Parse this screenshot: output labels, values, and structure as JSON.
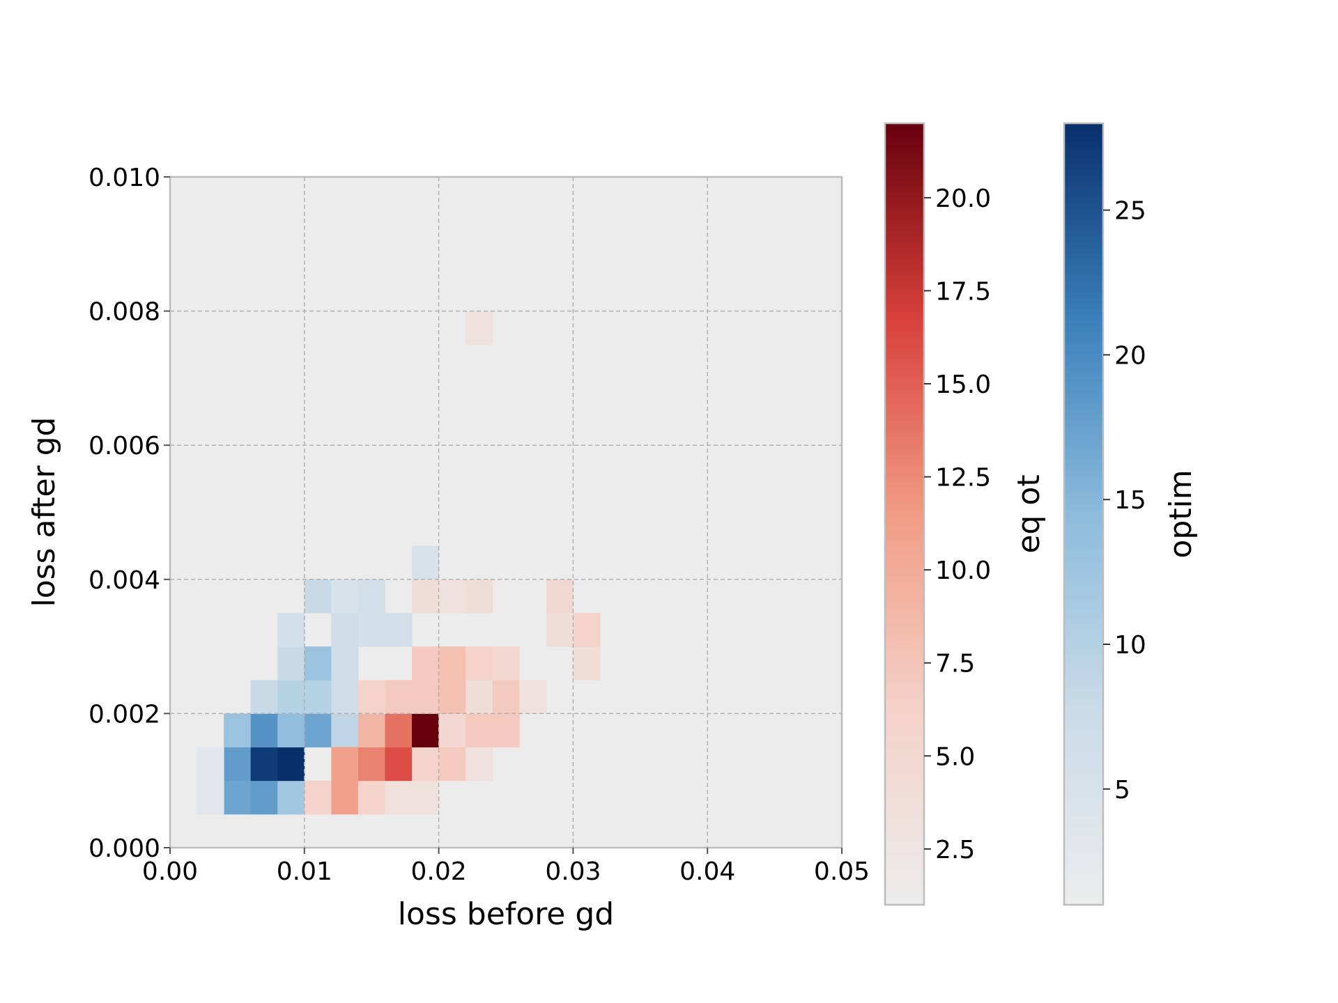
{
  "chart_data": {
    "type": "heatmap",
    "title": "",
    "xlabel": "loss before gd",
    "ylabel": "loss after gd",
    "xlim": [
      0,
      0.05
    ],
    "ylim": [
      0,
      0.01
    ],
    "xticks": [
      "0.00",
      "0.01",
      "0.02",
      "0.03",
      "0.04",
      "0.05"
    ],
    "yticks": [
      "0.000",
      "0.002",
      "0.004",
      "0.006",
      "0.008",
      "0.010"
    ],
    "grid": true,
    "bin_width_x": 0.002,
    "bin_height_y": 0.0005,
    "series": [
      {
        "name": "optim",
        "colormap": "Blues",
        "color_low": "#ececec",
        "color_high": "#08306b",
        "vmin": 1,
        "vmax": 28,
        "colorbar_label": "optim",
        "colorbar_ticks": [
          5,
          10,
          15,
          20,
          25
        ],
        "cells": [
          {
            "x": 0.004,
            "y": 0.0005,
            "count": 17
          },
          {
            "x": 0.006,
            "y": 0.0005,
            "count": 18
          },
          {
            "x": 0.008,
            "y": 0.0005,
            "count": 12
          },
          {
            "x": 0.004,
            "y": 0.001,
            "count": 18
          },
          {
            "x": 0.006,
            "y": 0.001,
            "count": 27
          },
          {
            "x": 0.008,
            "y": 0.001,
            "count": 28
          },
          {
            "x": 0.004,
            "y": 0.0015,
            "count": 13
          },
          {
            "x": 0.006,
            "y": 0.0015,
            "count": 19
          },
          {
            "x": 0.008,
            "y": 0.0015,
            "count": 14
          },
          {
            "x": 0.01,
            "y": 0.0015,
            "count": 17
          },
          {
            "x": 0.012,
            "y": 0.0015,
            "count": 9
          },
          {
            "x": 0.006,
            "y": 0.002,
            "count": 8
          },
          {
            "x": 0.008,
            "y": 0.002,
            "count": 10
          },
          {
            "x": 0.01,
            "y": 0.002,
            "count": 10
          },
          {
            "x": 0.012,
            "y": 0.002,
            "count": 7
          },
          {
            "x": 0.008,
            "y": 0.0025,
            "count": 8
          },
          {
            "x": 0.01,
            "y": 0.0025,
            "count": 13
          },
          {
            "x": 0.012,
            "y": 0.0025,
            "count": 7
          },
          {
            "x": 0.008,
            "y": 0.003,
            "count": 6
          },
          {
            "x": 0.012,
            "y": 0.003,
            "count": 7
          },
          {
            "x": 0.014,
            "y": 0.003,
            "count": 6
          },
          {
            "x": 0.016,
            "y": 0.003,
            "count": 6
          },
          {
            "x": 0.01,
            "y": 0.0035,
            "count": 8
          },
          {
            "x": 0.012,
            "y": 0.0035,
            "count": 5
          },
          {
            "x": 0.014,
            "y": 0.0035,
            "count": 6
          },
          {
            "x": 0.018,
            "y": 0.004,
            "count": 5
          },
          {
            "x": 0.002,
            "y": 0.0005,
            "count": 3
          },
          {
            "x": 0.002,
            "y": 0.001,
            "count": 3
          }
        ]
      },
      {
        "name": "eq ot",
        "colormap": "Reds",
        "color_low": "#ececec",
        "color_high": "#67000d",
        "vmin": 1,
        "vmax": 22,
        "colorbar_label": "eq ot",
        "colorbar_ticks": [
          "2.5",
          "5.0",
          "7.5",
          "10.0",
          "12.5",
          "15.0",
          "17.5",
          "20.0"
        ],
        "cells": [
          {
            "x": 0.01,
            "y": 0.0005,
            "count": 6
          },
          {
            "x": 0.012,
            "y": 0.0005,
            "count": 11
          },
          {
            "x": 0.014,
            "y": 0.0005,
            "count": 6
          },
          {
            "x": 0.016,
            "y": 0.0005,
            "count": 3
          },
          {
            "x": 0.018,
            "y": 0.0005,
            "count": 3
          },
          {
            "x": 0.012,
            "y": 0.001,
            "count": 11
          },
          {
            "x": 0.014,
            "y": 0.001,
            "count": 13
          },
          {
            "x": 0.016,
            "y": 0.001,
            "count": 16
          },
          {
            "x": 0.018,
            "y": 0.001,
            "count": 6
          },
          {
            "x": 0.02,
            "y": 0.001,
            "count": 7
          },
          {
            "x": 0.022,
            "y": 0.001,
            "count": 3
          },
          {
            "x": 0.014,
            "y": 0.0015,
            "count": 9
          },
          {
            "x": 0.016,
            "y": 0.0015,
            "count": 14
          },
          {
            "x": 0.018,
            "y": 0.0015,
            "count": 22
          },
          {
            "x": 0.02,
            "y": 0.0015,
            "count": 5
          },
          {
            "x": 0.022,
            "y": 0.0015,
            "count": 7
          },
          {
            "x": 0.024,
            "y": 0.0015,
            "count": 7
          },
          {
            "x": 0.014,
            "y": 0.002,
            "count": 6
          },
          {
            "x": 0.016,
            "y": 0.002,
            "count": 7
          },
          {
            "x": 0.018,
            "y": 0.002,
            "count": 7
          },
          {
            "x": 0.02,
            "y": 0.002,
            "count": 8
          },
          {
            "x": 0.022,
            "y": 0.002,
            "count": 4
          },
          {
            "x": 0.024,
            "y": 0.002,
            "count": 7
          },
          {
            "x": 0.026,
            "y": 0.002,
            "count": 3
          },
          {
            "x": 0.018,
            "y": 0.0025,
            "count": 7
          },
          {
            "x": 0.02,
            "y": 0.0025,
            "count": 8
          },
          {
            "x": 0.022,
            "y": 0.0025,
            "count": 6
          },
          {
            "x": 0.024,
            "y": 0.0025,
            "count": 5
          },
          {
            "x": 0.03,
            "y": 0.0025,
            "count": 4
          },
          {
            "x": 0.028,
            "y": 0.003,
            "count": 4
          },
          {
            "x": 0.03,
            "y": 0.003,
            "count": 6
          },
          {
            "x": 0.018,
            "y": 0.0035,
            "count": 4
          },
          {
            "x": 0.02,
            "y": 0.0035,
            "count": 3
          },
          {
            "x": 0.022,
            "y": 0.0035,
            "count": 4
          },
          {
            "x": 0.028,
            "y": 0.0035,
            "count": 5
          },
          {
            "x": 0.022,
            "y": 0.0075,
            "count": 3
          }
        ]
      }
    ]
  }
}
